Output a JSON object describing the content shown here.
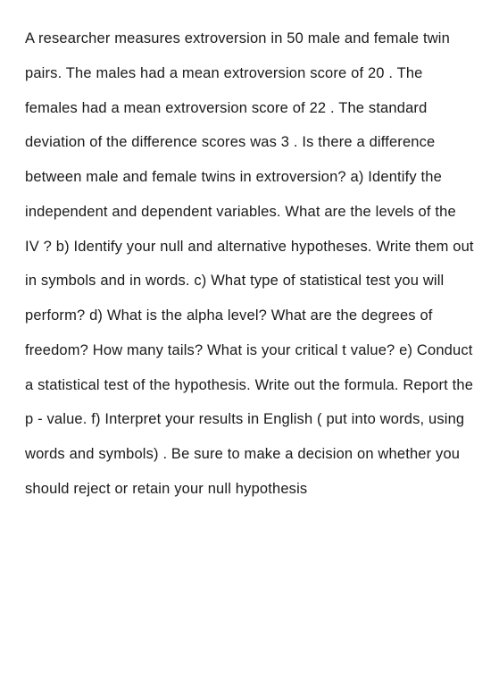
{
  "question": {
    "text": "A researcher measures extroversion in 50 male and female twin pairs. The males had a mean extroversion score of 20 . The females had a mean extroversion score of 22 . The standard deviation of the difference scores was 3 . Is there a difference between male and female twins in extroversion? a) Identify the independent and dependent variables. What are the levels of the IV ? b) Identify your null and alternative hypotheses. Write them out in symbols and in words. c) What type of statistical test you will perform? d) What is the alpha level? What are the degrees of freedom? How many tails? What is your critical t value? e) Conduct a statistical test of the hypothesis. Write out the formula. Report the p - value. f) Interpret your results in English ( put into words, using words and symbols) . Be sure to make a decision on whether you should reject or retain your null hypothesis",
    "font_size": 16.5,
    "line_height": 2.35,
    "text_color": "#1a1a1a",
    "background_color": "#ffffff"
  }
}
